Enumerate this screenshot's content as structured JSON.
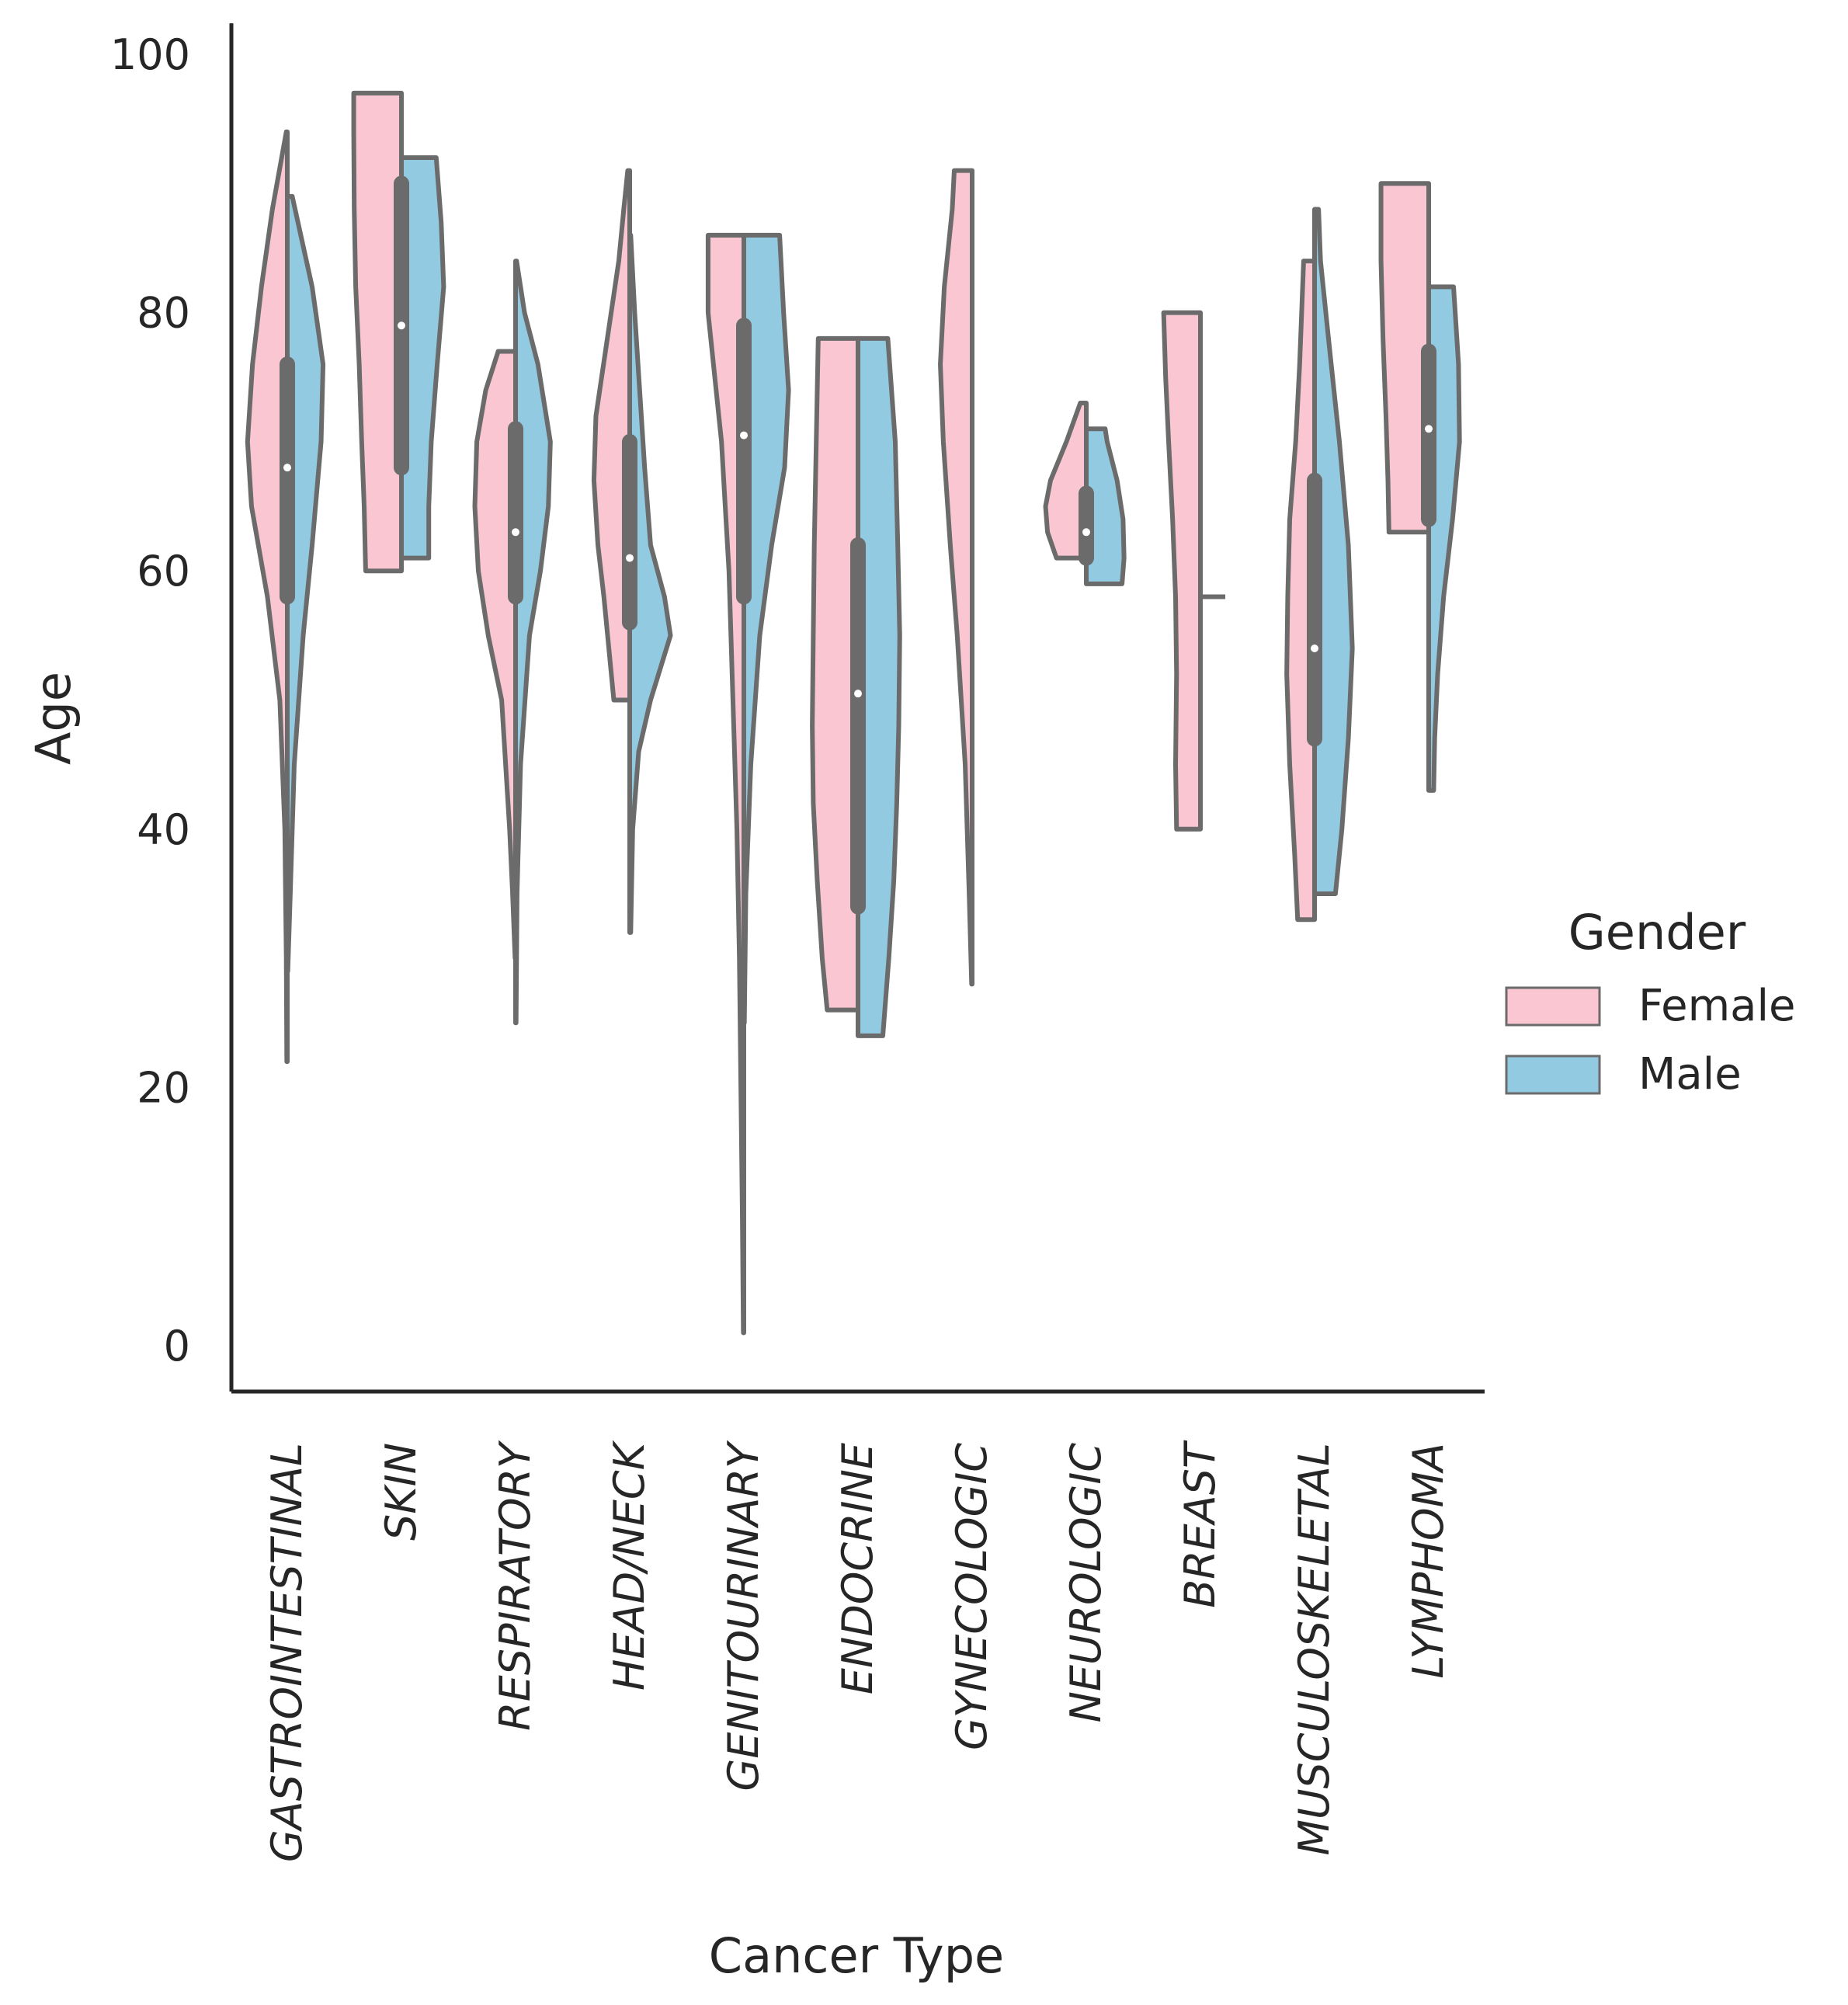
{
  "chart_data": {
    "type": "violin",
    "xlabel": "Cancer Type",
    "ylabel": "Age",
    "ylim": [
      -4,
      102
    ],
    "yticks": [
      0,
      20,
      40,
      60,
      80,
      100
    ],
    "grid": false,
    "legend_placement": "center-right",
    "legend_title": "Gender",
    "categories": [
      "GASTROINTESTINAL",
      "SKIN",
      "RESPIRATORY",
      "HEAD/NECK",
      "GENITOURINARY",
      "ENDOCRINE",
      "GYNECOLOGIC",
      "NEUROLOGIC",
      "BREAST",
      "MUSCULOSKELETAL",
      "LYMPHOMA"
    ],
    "series": [
      {
        "name": "Female",
        "color": "#f9c6d2"
      },
      {
        "name": "Male",
        "color": "#92cae2"
      }
    ],
    "outline_color": "#6b6b6b",
    "violins": [
      {
        "category": "GASTROINTESTINAL",
        "female": {
          "min": 22,
          "max": 94,
          "density": [
            [
              22,
              0.01
            ],
            [
              30,
              0.02
            ],
            [
              40,
              0.05
            ],
            [
              50,
              0.15
            ],
            [
              58,
              0.4
            ],
            [
              65,
              0.72
            ],
            [
              70,
              0.8
            ],
            [
              76,
              0.7
            ],
            [
              82,
              0.52
            ],
            [
              88,
              0.3
            ],
            [
              94,
              0.02
            ]
          ]
        },
        "male": {
          "min": 29,
          "max": 89,
          "density": [
            [
              29,
              0.01
            ],
            [
              35,
              0.06
            ],
            [
              45,
              0.14
            ],
            [
              55,
              0.32
            ],
            [
              62,
              0.5
            ],
            [
              70,
              0.68
            ],
            [
              76,
              0.72
            ],
            [
              82,
              0.5
            ],
            [
              89,
              0.1
            ]
          ]
        },
        "box": {
          "q1": 58,
          "median": 68,
          "q3": 76
        }
      },
      {
        "category": "SKIN",
        "female": {
          "min": 60,
          "max": 97,
          "density": [
            [
              60,
              0.72
            ],
            [
              65,
              0.75
            ],
            [
              70,
              0.8
            ],
            [
              76,
              0.85
            ],
            [
              82,
              0.92
            ],
            [
              88,
              0.95
            ],
            [
              94,
              0.96
            ],
            [
              97,
              0.96
            ]
          ]
        },
        "male": {
          "min": 61,
          "max": 92,
          "density": [
            [
              61,
              0.55
            ],
            [
              65,
              0.55
            ],
            [
              70,
              0.6
            ],
            [
              76,
              0.72
            ],
            [
              82,
              0.85
            ],
            [
              87,
              0.8
            ],
            [
              92,
              0.7
            ]
          ]
        },
        "box": {
          "q1": 68,
          "median": 79,
          "q3": 90
        }
      },
      {
        "category": "RESPIRATORY",
        "female": {
          "min": 30,
          "max": 77,
          "density": [
            [
              30,
              0.01
            ],
            [
              35,
              0.06
            ],
            [
              40,
              0.12
            ],
            [
              50,
              0.28
            ],
            [
              55,
              0.55
            ],
            [
              60,
              0.75
            ],
            [
              65,
              0.82
            ],
            [
              70,
              0.78
            ],
            [
              74,
              0.6
            ],
            [
              77,
              0.35
            ]
          ]
        },
        "male": {
          "min": 25,
          "max": 84,
          "density": [
            [
              25,
              0.01
            ],
            [
              35,
              0.03
            ],
            [
              45,
              0.1
            ],
            [
              55,
              0.28
            ],
            [
              60,
              0.5
            ],
            [
              65,
              0.66
            ],
            [
              70,
              0.7
            ],
            [
              76,
              0.45
            ],
            [
              80,
              0.18
            ],
            [
              84,
              0.02
            ]
          ]
        },
        "box": {
          "q1": 58,
          "median": 63,
          "q3": 71
        }
      },
      {
        "category": "HEAD/NECK",
        "female": {
          "min": 50,
          "max": 91,
          "density": [
            [
              50,
              0.32
            ],
            [
              54,
              0.42
            ],
            [
              58,
              0.52
            ],
            [
              62,
              0.64
            ],
            [
              67,
              0.72
            ],
            [
              72,
              0.68
            ],
            [
              78,
              0.45
            ],
            [
              84,
              0.22
            ],
            [
              88,
              0.12
            ],
            [
              91,
              0.04
            ]
          ]
        },
        "male": {
          "min": 32,
          "max": 86,
          "density": [
            [
              32,
              0.02
            ],
            [
              40,
              0.06
            ],
            [
              46,
              0.18
            ],
            [
              50,
              0.42
            ],
            [
              55,
              0.82
            ],
            [
              58,
              0.7
            ],
            [
              62,
              0.42
            ],
            [
              68,
              0.3
            ],
            [
              74,
              0.2
            ],
            [
              80,
              0.1
            ],
            [
              86,
              0.02
            ]
          ]
        },
        "box": {
          "q1": 56,
          "median": 61,
          "q3": 70
        }
      },
      {
        "category": "GENITOURINARY",
        "female": {
          "min": 1,
          "max": 86,
          "density": [
            [
              1,
              0.01
            ],
            [
              10,
              0.03
            ],
            [
              20,
              0.06
            ],
            [
              30,
              0.09
            ],
            [
              40,
              0.14
            ],
            [
              50,
              0.22
            ],
            [
              60,
              0.3
            ],
            [
              70,
              0.45
            ],
            [
              80,
              0.72
            ],
            [
              86,
              0.72
            ]
          ]
        },
        "male": {
          "min": 25,
          "max": 86,
          "density": [
            [
              25,
              0.01
            ],
            [
              35,
              0.04
            ],
            [
              45,
              0.14
            ],
            [
              55,
              0.32
            ],
            [
              62,
              0.56
            ],
            [
              68,
              0.82
            ],
            [
              74,
              0.9
            ],
            [
              80,
              0.8
            ],
            [
              86,
              0.72
            ]
          ]
        },
        "box": {
          "q1": 58,
          "median": 70.5,
          "q3": 79
        }
      },
      {
        "category": "ENDOCRINE",
        "female": {
          "min": 26,
          "max": 78,
          "density": [
            [
              26,
              0.62
            ],
            [
              30,
              0.72
            ],
            [
              36,
              0.82
            ],
            [
              42,
              0.9
            ],
            [
              48,
              0.92
            ],
            [
              55,
              0.9
            ],
            [
              62,
              0.88
            ],
            [
              70,
              0.84
            ],
            [
              78,
              0.8
            ]
          ]
        },
        "male": {
          "min": 24,
          "max": 78,
          "density": [
            [
              24,
              0.5
            ],
            [
              30,
              0.62
            ],
            [
              36,
              0.72
            ],
            [
              42,
              0.78
            ],
            [
              48,
              0.82
            ],
            [
              55,
              0.84
            ],
            [
              62,
              0.8
            ],
            [
              70,
              0.75
            ],
            [
              78,
              0.6
            ]
          ]
        },
        "box": {
          "q1": 34,
          "median": 50.5,
          "q3": 62
        }
      },
      {
        "category": "GYNECOLOGIC",
        "female": {
          "min": 28,
          "max": 91,
          "density": [
            [
              28,
              0.01
            ],
            [
              35,
              0.06
            ],
            [
              45,
              0.14
            ],
            [
              55,
              0.3
            ],
            [
              62,
              0.44
            ],
            [
              70,
              0.58
            ],
            [
              76,
              0.64
            ],
            [
              82,
              0.56
            ],
            [
              88,
              0.4
            ],
            [
              91,
              0.36
            ]
          ]
        },
        "male": null,
        "box": null
      },
      {
        "category": "NEUROLOGIC",
        "female": {
          "min": 61,
          "max": 73,
          "density": [
            [
              61,
              0.6
            ],
            [
              63,
              0.78
            ],
            [
              65,
              0.82
            ],
            [
              67,
              0.72
            ],
            [
              70,
              0.4
            ],
            [
              73,
              0.12
            ]
          ]
        },
        "male": {
          "min": 59,
          "max": 71,
          "density": [
            [
              59,
              0.72
            ],
            [
              61,
              0.76
            ],
            [
              64,
              0.74
            ],
            [
              67,
              0.62
            ],
            [
              70,
              0.42
            ],
            [
              71,
              0.38
            ]
          ]
        },
        "box": {
          "q1": 61,
          "median": 63,
          "q3": 66
        }
      },
      {
        "category": "BREAST",
        "female": {
          "min": 40,
          "max": 80,
          "density": [
            [
              40,
              0.48
            ],
            [
              45,
              0.5
            ],
            [
              52,
              0.48
            ],
            [
              58,
              0.5
            ],
            [
              64,
              0.56
            ],
            [
              70,
              0.64
            ],
            [
              75,
              0.7
            ],
            [
              80,
              0.74
            ]
          ]
        },
        "male": {
          "min": 58,
          "max": 58,
          "density": [
            [
              58,
              0.5
            ]
          ]
        },
        "box": null
      },
      {
        "category": "MUSCULOSKELETAL",
        "female": {
          "min": 33,
          "max": 84,
          "density": [
            [
              33,
              0.34
            ],
            [
              38,
              0.4
            ],
            [
              45,
              0.5
            ],
            [
              52,
              0.56
            ],
            [
              58,
              0.54
            ],
            [
              64,
              0.5
            ],
            [
              70,
              0.38
            ],
            [
              76,
              0.3
            ],
            [
              84,
              0.22
            ]
          ]
        },
        "male": {
          "min": 35,
          "max": 88,
          "density": [
            [
              35,
              0.42
            ],
            [
              40,
              0.55
            ],
            [
              47,
              0.68
            ],
            [
              54,
              0.76
            ],
            [
              62,
              0.68
            ],
            [
              70,
              0.5
            ],
            [
              78,
              0.28
            ],
            [
              84,
              0.12
            ],
            [
              88,
              0.08
            ]
          ]
        },
        "box": {
          "q1": 47,
          "median": 54,
          "q3": 67
        }
      },
      {
        "category": "LYMPHOMA",
        "female": {
          "min": 63,
          "max": 90,
          "density": [
            [
              63,
              0.8
            ],
            [
              67,
              0.82
            ],
            [
              72,
              0.86
            ],
            [
              78,
              0.92
            ],
            [
              84,
              0.96
            ],
            [
              90,
              0.96
            ]
          ]
        },
        "male": {
          "min": 43,
          "max": 82,
          "density": [
            [
              43,
              0.1
            ],
            [
              47,
              0.12
            ],
            [
              52,
              0.18
            ],
            [
              58,
              0.3
            ],
            [
              64,
              0.48
            ],
            [
              70,
              0.62
            ],
            [
              76,
              0.6
            ],
            [
              82,
              0.5
            ]
          ]
        },
        "box": {
          "q1": 64,
          "median": 71,
          "q3": 77
        }
      }
    ]
  }
}
